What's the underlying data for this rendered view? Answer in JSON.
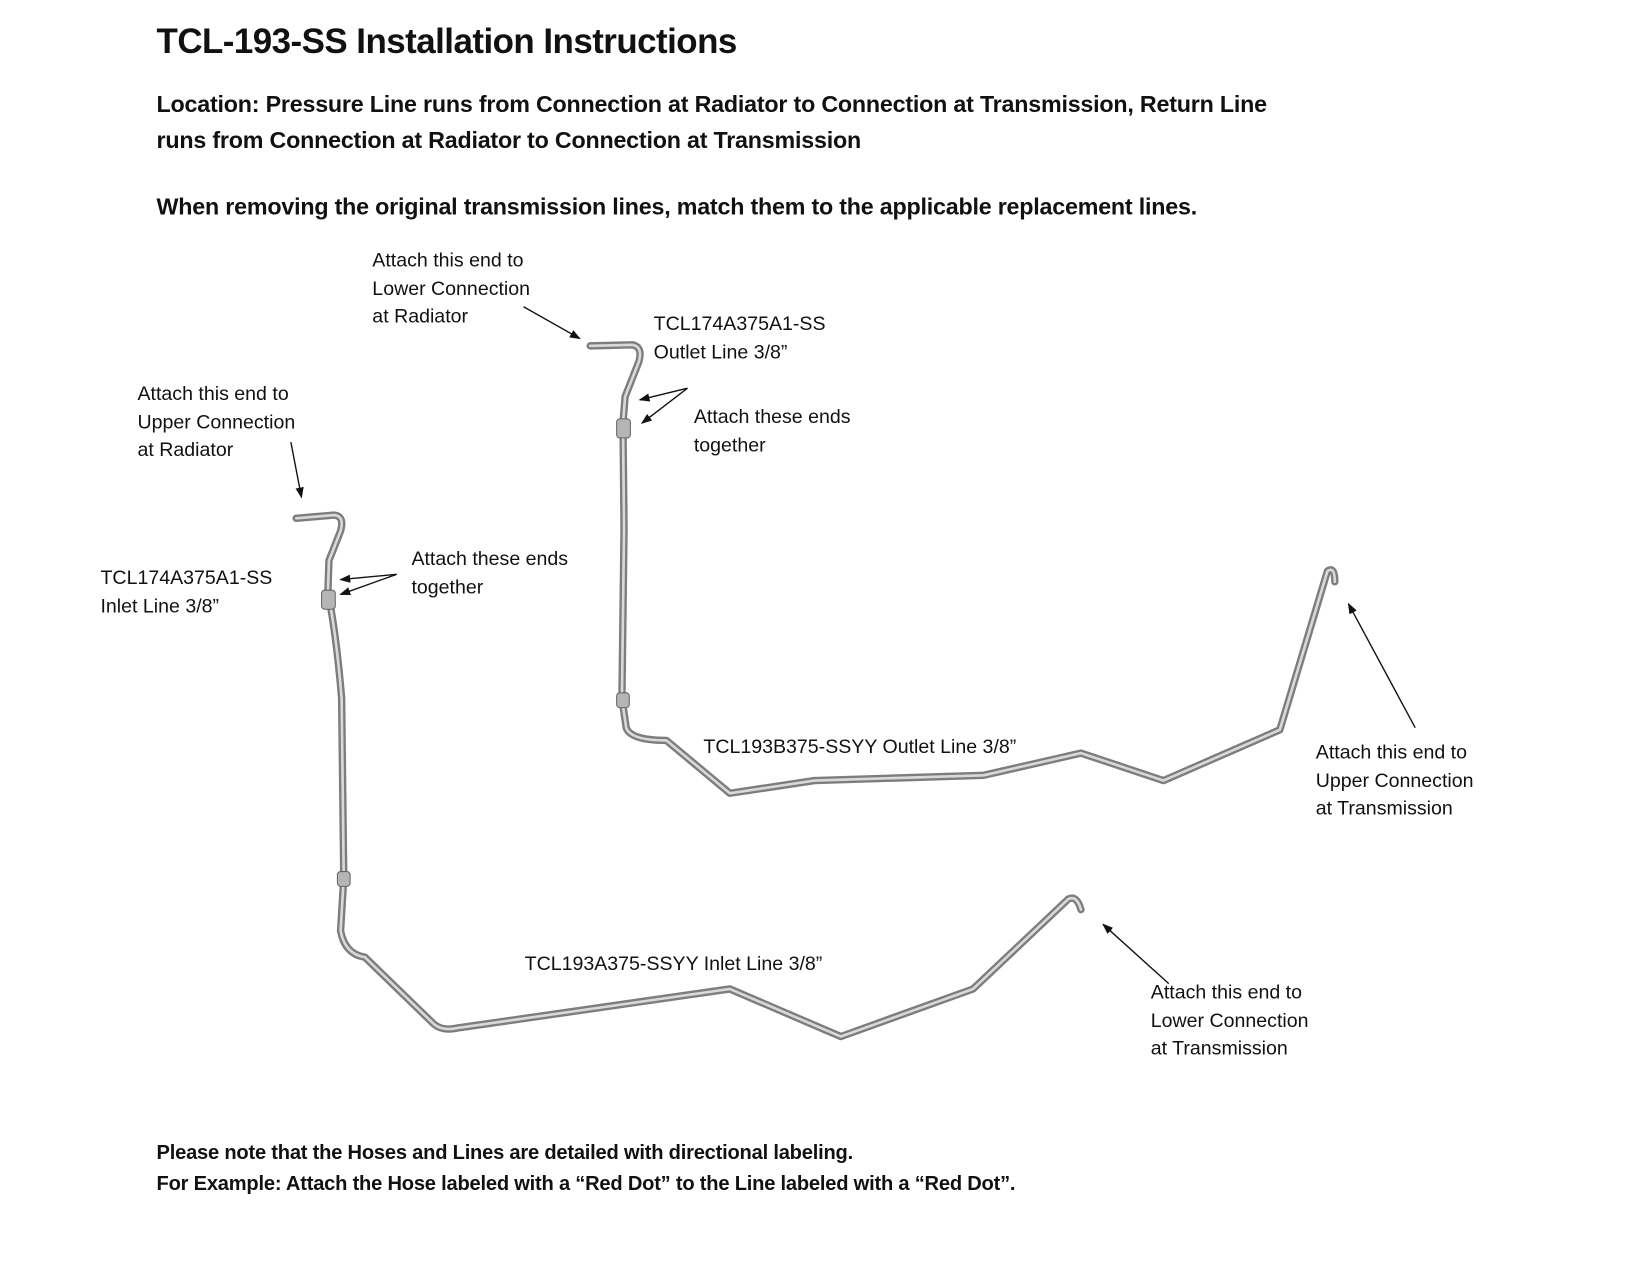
{
  "title": "TCL-193-SS Installation Instructions",
  "location": {
    "line1": "Location: Pressure Line runs from Connection at Radiator to Connection at Transmission, Return Line",
    "line2": "runs from Connection at Radiator to Connection at Transmission"
  },
  "instruction": "When removing the original transmission lines, match them to the applicable replacement lines.",
  "labels": {
    "lower_radiator": [
      "Attach this end to",
      "Lower Connection",
      "at Radiator"
    ],
    "outlet_hose": [
      "TCL174A375A1-SS",
      "Outlet Line 3/8”"
    ],
    "outlet_join": [
      "Attach these ends",
      "together"
    ],
    "upper_radiator": [
      "Attach this end to",
      "Upper Connection",
      "at Radiator"
    ],
    "inlet_hose": [
      "TCL174A375A1-SS",
      "Inlet Line 3/8”"
    ],
    "inlet_join": [
      "Attach these ends",
      "together"
    ],
    "outlet_line": "TCL193B375-SSYY Outlet Line 3/8”",
    "upper_transmission": [
      "Attach this end to",
      "Upper Connection",
      "at Transmission"
    ],
    "inlet_line": "TCL193A375-SSYY Inlet Line 3/8”",
    "lower_transmission": [
      "Attach this end to",
      "Lower Connection",
      "at Transmission"
    ]
  },
  "notes": {
    "line1": "Please note that the Hoses and Lines are detailed with directional labeling.",
    "line2": "For Example: Attach the Hose labeled with a “Red Dot” to the Line labeled with a “Red Dot”."
  },
  "colors": {
    "pipe": "#8a8a88",
    "pipe_highlight": "#d8d8d6",
    "text": "#111111"
  }
}
